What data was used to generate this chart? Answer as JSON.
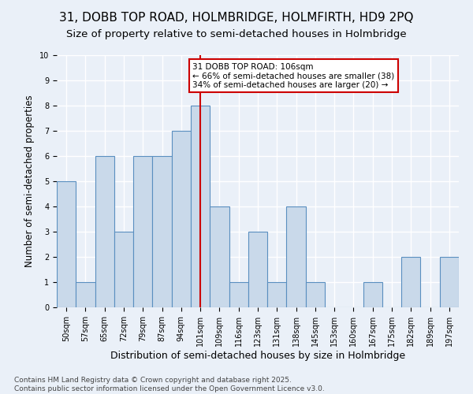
{
  "title1": "31, DOBB TOP ROAD, HOLMBRIDGE, HOLMFIRTH, HD9 2PQ",
  "title2": "Size of property relative to semi-detached houses in Holmbridge",
  "xlabel": "Distribution of semi-detached houses by size in Holmbridge",
  "ylabel": "Number of semi-detached properties",
  "categories": [
    "50sqm",
    "57sqm",
    "65sqm",
    "72sqm",
    "79sqm",
    "87sqm",
    "94sqm",
    "101sqm",
    "109sqm",
    "116sqm",
    "123sqm",
    "131sqm",
    "138sqm",
    "145sqm",
    "153sqm",
    "160sqm",
    "167sqm",
    "175sqm",
    "182sqm",
    "189sqm",
    "197sqm"
  ],
  "values": [
    5,
    1,
    6,
    3,
    6,
    6,
    7,
    8,
    4,
    1,
    3,
    1,
    4,
    1,
    0,
    0,
    1,
    0,
    2,
    0,
    2
  ],
  "bar_color": "#c9d9ea",
  "bar_edge_color": "#5a8fc0",
  "highlight_index": 7,
  "highlight_line_color": "#cc0000",
  "annotation_text": "31 DOBB TOP ROAD: 106sqm\n← 66% of semi-detached houses are smaller (38)\n34% of semi-detached houses are larger (20) →",
  "annotation_box_color": "#cc0000",
  "ylim": [
    0,
    10
  ],
  "yticks": [
    0,
    1,
    2,
    3,
    4,
    5,
    6,
    7,
    8,
    9,
    10
  ],
  "background_color": "#eaf0f8",
  "grid_color": "#ffffff",
  "footer": "Contains HM Land Registry data © Crown copyright and database right 2025.\nContains public sector information licensed under the Open Government Licence v3.0.",
  "title1_fontsize": 11,
  "title2_fontsize": 9.5,
  "xlabel_fontsize": 9,
  "ylabel_fontsize": 8.5,
  "annotation_fontsize": 7.5,
  "footer_fontsize": 6.5,
  "tick_fontsize": 7
}
